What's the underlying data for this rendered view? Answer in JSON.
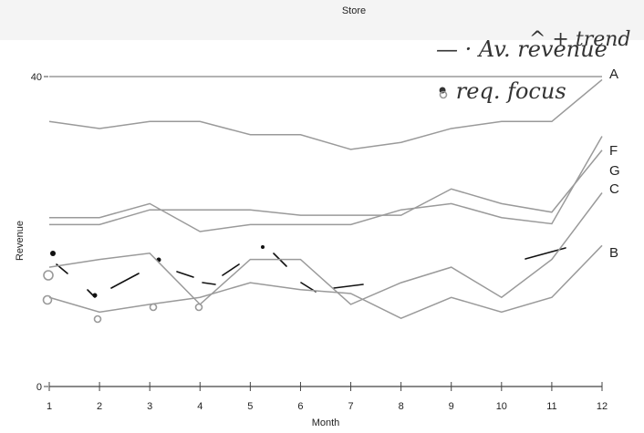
{
  "header": {
    "title": "Store"
  },
  "annotations": {
    "trend_note": "— · Av. revenue",
    "trend_note_2": "^ + trend",
    "focus_note": "• req. focus"
  },
  "chart_data": {
    "type": "line",
    "title": "Store",
    "xlabel": "Month",
    "ylabel": "Revenue",
    "x": [
      1,
      2,
      3,
      4,
      5,
      6,
      7,
      8,
      9,
      10,
      11,
      12
    ],
    "xlim": [
      1,
      12
    ],
    "ylim": [
      0,
      40
    ],
    "ytick_labels": [
      "0",
      "40"
    ],
    "grid": false,
    "series": [
      {
        "name": "A",
        "color": "#9a9a9a",
        "values": [
          40,
          40,
          40,
          40,
          40,
          40,
          40,
          40,
          40,
          40,
          40,
          40
        ]
      },
      {
        "name": "F",
        "color": "#9a9a9a",
        "values": [
          34.2,
          33.3,
          34.2,
          34.2,
          32.5,
          32.5,
          30.6,
          31.5,
          33.3,
          34.2,
          34.2,
          39.6
        ]
      },
      {
        "name": "G",
        "color": "#9a9a9a",
        "values": [
          21.8,
          21.8,
          23.6,
          20.0,
          20.9,
          20.9,
          20.9,
          22.8,
          23.6,
          21.8,
          21.0,
          32.3
        ]
      },
      {
        "name": "C",
        "color": "#9a9a9a",
        "values": [
          20.9,
          20.9,
          22.8,
          22.8,
          22.8,
          22.1,
          22.1,
          22.1,
          25.5,
          23.6,
          22.5,
          30.5
        ]
      },
      {
        "name": "",
        "color": "#9a9a9a",
        "values": [
          15.4,
          16.4,
          17.2,
          10.6,
          16.4,
          16.4,
          10.6,
          13.4,
          15.4,
          11.5,
          16.4,
          25.0
        ]
      },
      {
        "name": "B",
        "color": "#9a9a9a",
        "values": [
          11.5,
          9.6,
          10.6,
          11.5,
          13.4,
          12.5,
          12.0,
          8.8,
          11.5,
          9.6,
          11.5,
          18.2
        ]
      }
    ]
  }
}
